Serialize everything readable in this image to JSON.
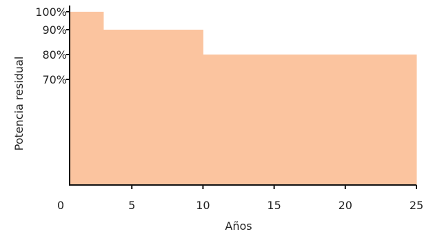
{
  "chart_data": {
    "type": "area",
    "title": "",
    "xlabel": "Años",
    "ylabel": "Potencia residual",
    "fill_color": "#fbc49f",
    "axis_color": "#111111",
    "xlim": [
      0,
      25
    ],
    "ylim": [
      0,
      100
    ],
    "x_ticks": [
      {
        "value": 0,
        "label": "0"
      },
      {
        "value": 5,
        "label": "5"
      },
      {
        "value": 10,
        "label": "10"
      },
      {
        "value": 15,
        "label": "15"
      },
      {
        "value": 20,
        "label": "20"
      },
      {
        "value": 25,
        "label": "25"
      }
    ],
    "y_ticks": [
      {
        "value": 70,
        "label": "70%"
      },
      {
        "value": 80,
        "label": "80%"
      },
      {
        "value": 90,
        "label": "90%"
      },
      {
        "value": 100,
        "label": "100%"
      }
    ],
    "series": [
      {
        "step_segments": [
          {
            "x_start": 0,
            "x_end": 3,
            "y": 100
          },
          {
            "x_start": 3,
            "x_end": 10,
            "y": 90
          },
          {
            "x_start": 10,
            "x_end": 25,
            "y": 80
          }
        ]
      }
    ],
    "grid": false,
    "legend": "none"
  }
}
